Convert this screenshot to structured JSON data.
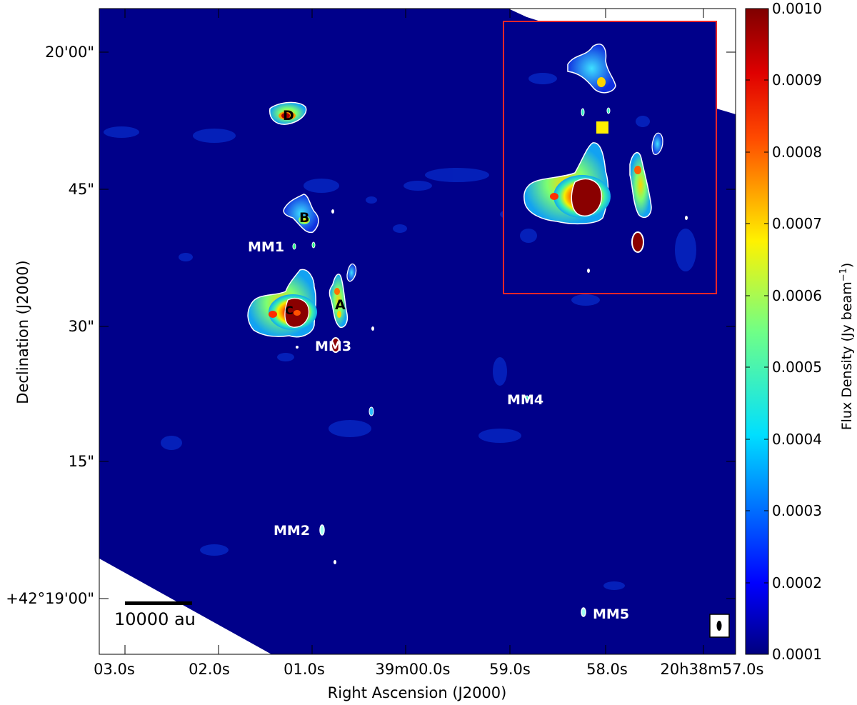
{
  "axes": {
    "xlabel": "Right Ascension (J2000)",
    "ylabel": "Declination (J2000)",
    "xticks": [
      "03.0s",
      "02.0s",
      "01.0s",
      "39m00.0s",
      "59.0s",
      "58.0s",
      "20h38m57.0s"
    ],
    "yticks": [
      "20'00\"",
      "45\"",
      "30\"",
      "15\"",
      "+42°19'00\""
    ]
  },
  "colorbar": {
    "label": "Flux Density (Jy beam",
    "label_sup": "−1",
    "label_end": ")",
    "range": [
      0.0001,
      0.001
    ],
    "ticks": [
      "0.0010",
      "0.0009",
      "0.0008",
      "0.0007",
      "0.0006",
      "0.0005",
      "0.0004",
      "0.0003",
      "0.0002",
      "0.0001"
    ],
    "colormap": "jet"
  },
  "sources": {
    "white": [
      "MM1",
      "MM2",
      "MM3",
      "MM4",
      "MM5"
    ],
    "black": [
      "A",
      "B",
      "C",
      "D"
    ]
  },
  "scalebar": {
    "label": "10000 au"
  },
  "colors": {
    "background_map": "#00008a",
    "inset_border": "#e8262a",
    "marker": "#ffee00",
    "contour": "#ffffff"
  }
}
